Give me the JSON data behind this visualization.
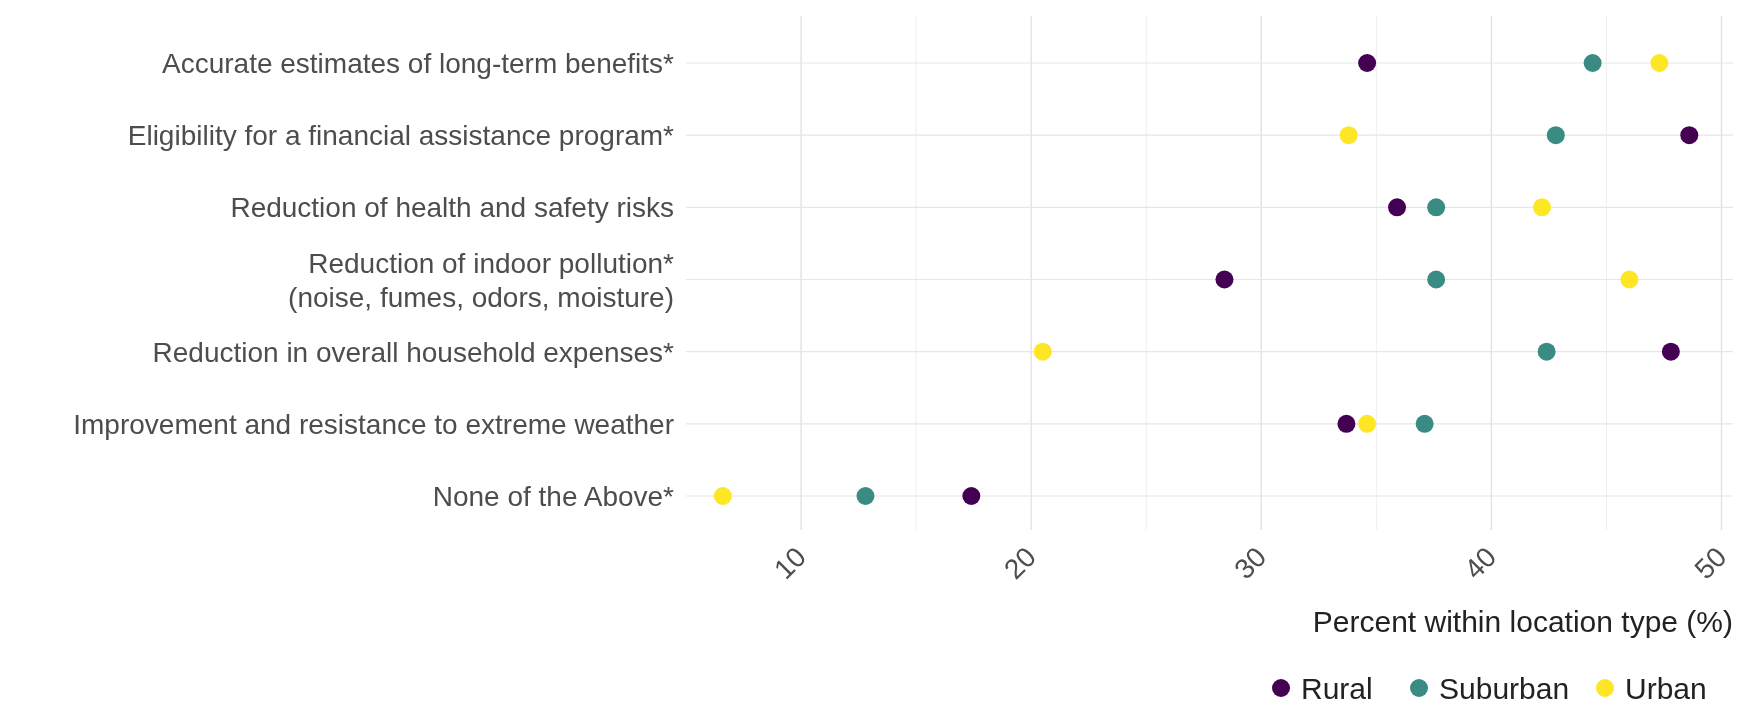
{
  "chart_data": {
    "type": "scatter",
    "xlabel": "Percent within location type (%)",
    "categories": [
      "Accurate estimates of long-term benefits*",
      "Eligibility for a financial assistance program*",
      "Reduction of health and safety risks",
      "Reduction of indoor pollution*\n(noise, fumes, odors, moisture)",
      "Reduction in overall household expenses*",
      "Improvement and resistance to extreme weather",
      "None of the Above*"
    ],
    "orientation": "horizontal",
    "series": [
      {
        "name": "Rural",
        "color": "#440154",
        "values": [
          34.6,
          48.6,
          35.9,
          28.4,
          47.8,
          33.7,
          17.4
        ]
      },
      {
        "name": "Suburban",
        "color": "#3b8b85",
        "values": [
          44.4,
          42.8,
          37.6,
          37.6,
          42.4,
          37.1,
          12.8
        ]
      },
      {
        "name": "Urban",
        "color": "#fde725",
        "values": [
          47.3,
          33.8,
          42.2,
          46.0,
          20.5,
          34.6,
          6.6
        ]
      }
    ],
    "xlim": [
      5,
      50.5
    ],
    "xticks": [
      10,
      {
        "value": 15,
        "label": null
      },
      20,
      {
        "value": 25,
        "label": null
      },
      30,
      {
        "value": 35,
        "label": null
      },
      40,
      {
        "value": 45,
        "label": null
      },
      50
    ],
    "grid": true,
    "legend": "bottom right",
    "marker": "circle"
  }
}
